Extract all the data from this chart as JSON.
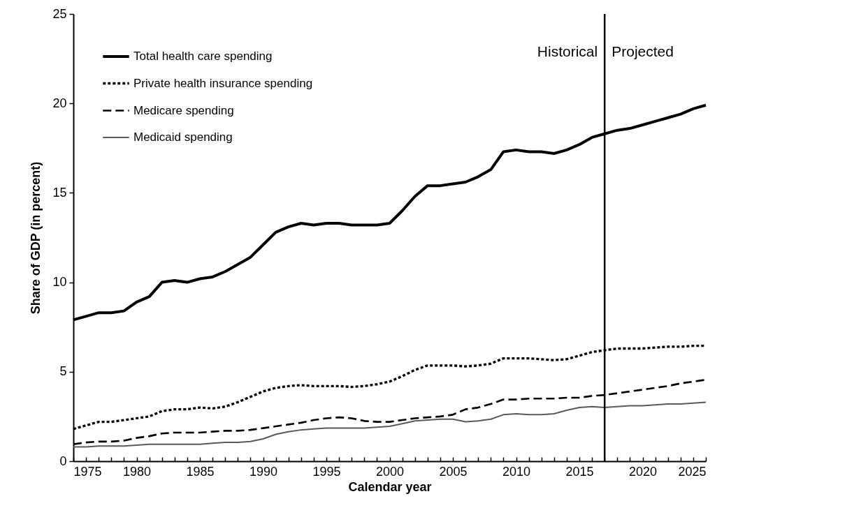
{
  "chart_data": {
    "type": "line",
    "xlabel": "Calendar year",
    "ylabel": "Share of GDP (in percent)",
    "x": [
      1975,
      1976,
      1977,
      1978,
      1979,
      1980,
      1981,
      1982,
      1983,
      1984,
      1985,
      1986,
      1987,
      1988,
      1989,
      1990,
      1991,
      1992,
      1993,
      1994,
      1995,
      1996,
      1997,
      1998,
      1999,
      2000,
      2001,
      2002,
      2003,
      2004,
      2005,
      2006,
      2007,
      2008,
      2009,
      2010,
      2011,
      2012,
      2013,
      2014,
      2015,
      2016,
      2017,
      2018,
      2019,
      2020,
      2021,
      2022,
      2023,
      2024,
      2025
    ],
    "series": [
      {
        "name": "Total health care spending",
        "color": "#000000",
        "line_style": "solid",
        "values": [
          7.9,
          8.1,
          8.3,
          8.3,
          8.4,
          8.9,
          9.2,
          10.0,
          10.1,
          10.0,
          10.2,
          10.3,
          10.6,
          11.0,
          11.4,
          12.1,
          12.8,
          13.1,
          13.3,
          13.2,
          13.3,
          13.3,
          13.2,
          13.2,
          13.2,
          13.3,
          14.0,
          14.8,
          15.4,
          15.4,
          15.5,
          15.6,
          15.9,
          16.3,
          17.3,
          17.4,
          17.3,
          17.3,
          17.2,
          17.4,
          17.7,
          18.1,
          18.3,
          18.5,
          18.6,
          18.8,
          19.0,
          19.2,
          19.4,
          19.7,
          19.9
        ]
      },
      {
        "name": "Private health insurance spending",
        "color": "#000000",
        "line_style": "dotted",
        "values": [
          1.8,
          2.0,
          2.2,
          2.2,
          2.3,
          2.4,
          2.5,
          2.8,
          2.9,
          2.9,
          3.0,
          2.95,
          3.05,
          3.3,
          3.6,
          3.9,
          4.1,
          4.2,
          4.25,
          4.2,
          4.2,
          4.2,
          4.15,
          4.2,
          4.3,
          4.45,
          4.75,
          5.1,
          5.35,
          5.35,
          5.35,
          5.3,
          5.35,
          5.45,
          5.75,
          5.75,
          5.75,
          5.7,
          5.65,
          5.7,
          5.9,
          6.1,
          6.2,
          6.3,
          6.3,
          6.3,
          6.35,
          6.4,
          6.4,
          6.45,
          6.45
        ]
      },
      {
        "name": "Medicare spending",
        "color": "#000000",
        "line_style": "dashed",
        "values": [
          0.95,
          1.05,
          1.1,
          1.1,
          1.15,
          1.3,
          1.4,
          1.55,
          1.6,
          1.6,
          1.6,
          1.65,
          1.7,
          1.7,
          1.75,
          1.85,
          1.95,
          2.05,
          2.15,
          2.3,
          2.4,
          2.45,
          2.4,
          2.25,
          2.2,
          2.2,
          2.3,
          2.4,
          2.45,
          2.5,
          2.6,
          2.9,
          3.0,
          3.2,
          3.45,
          3.45,
          3.5,
          3.5,
          3.5,
          3.55,
          3.55,
          3.65,
          3.7,
          3.8,
          3.9,
          4.0,
          4.1,
          4.2,
          4.35,
          4.45,
          4.55
        ]
      },
      {
        "name": " Medicaid spending",
        "color": "#595959",
        "line_style": "solid",
        "values": [
          0.8,
          0.8,
          0.85,
          0.85,
          0.85,
          0.9,
          0.95,
          0.95,
          0.95,
          0.95,
          0.95,
          1.0,
          1.05,
          1.05,
          1.1,
          1.25,
          1.5,
          1.65,
          1.75,
          1.8,
          1.85,
          1.85,
          1.85,
          1.85,
          1.9,
          1.95,
          2.1,
          2.25,
          2.3,
          2.35,
          2.35,
          2.2,
          2.25,
          2.35,
          2.6,
          2.65,
          2.6,
          2.6,
          2.65,
          2.85,
          3.0,
          3.05,
          3.0,
          3.05,
          3.1,
          3.1,
          3.15,
          3.2,
          3.2,
          3.25,
          3.3
        ]
      }
    ],
    "xlim": [
      1975,
      2025
    ],
    "xticks": [
      1975,
      {
        "value": 1976,
        "label": null
      },
      {
        "value": 1977,
        "label": null
      },
      {
        "value": 1978,
        "label": null
      },
      {
        "value": 1979,
        "label": null
      },
      1980,
      {
        "value": 1981,
        "label": null
      },
      {
        "value": 1982,
        "label": null
      },
      {
        "value": 1983,
        "label": null
      },
      {
        "value": 1984,
        "label": null
      },
      1985,
      {
        "value": 1986,
        "label": null
      },
      {
        "value": 1987,
        "label": null
      },
      {
        "value": 1988,
        "label": null
      },
      {
        "value": 1989,
        "label": null
      },
      1990,
      {
        "value": 1991,
        "label": null
      },
      {
        "value": 1992,
        "label": null
      },
      {
        "value": 1993,
        "label": null
      },
      {
        "value": 1994,
        "label": null
      },
      1995,
      {
        "value": 1996,
        "label": null
      },
      {
        "value": 1997,
        "label": null
      },
      {
        "value": 1998,
        "label": null
      },
      {
        "value": 1999,
        "label": null
      },
      2000,
      {
        "value": 2001,
        "label": null
      },
      {
        "value": 2002,
        "label": null
      },
      {
        "value": 2003,
        "label": null
      },
      {
        "value": 2004,
        "label": null
      },
      2005,
      {
        "value": 2006,
        "label": null
      },
      {
        "value": 2007,
        "label": null
      },
      {
        "value": 2008,
        "label": null
      },
      {
        "value": 2009,
        "label": null
      },
      2010,
      {
        "value": 2011,
        "label": null
      },
      {
        "value": 2012,
        "label": null
      },
      {
        "value": 2013,
        "label": null
      },
      {
        "value": 2014,
        "label": null
      },
      2015,
      {
        "value": 2016,
        "label": null
      },
      {
        "value": 2017,
        "label": null
      },
      {
        "value": 2018,
        "label": null
      },
      {
        "value": 2019,
        "label": null
      },
      2020,
      {
        "value": 2021,
        "label": null
      },
      {
        "value": 2022,
        "label": null
      },
      {
        "value": 2023,
        "label": null
      },
      {
        "value": 2024,
        "label": null
      },
      2025
    ],
    "ylim": [
      0,
      25
    ],
    "yticks": [
      0,
      5,
      10,
      15,
      20,
      25
    ],
    "grid": false,
    "legend": "top left",
    "marker": "none",
    "ref_lines": [
      {
        "axis": "x",
        "value": 2017,
        "color": "#000000"
      }
    ],
    "annotations": [
      "Historical",
      "Projected"
    ]
  }
}
